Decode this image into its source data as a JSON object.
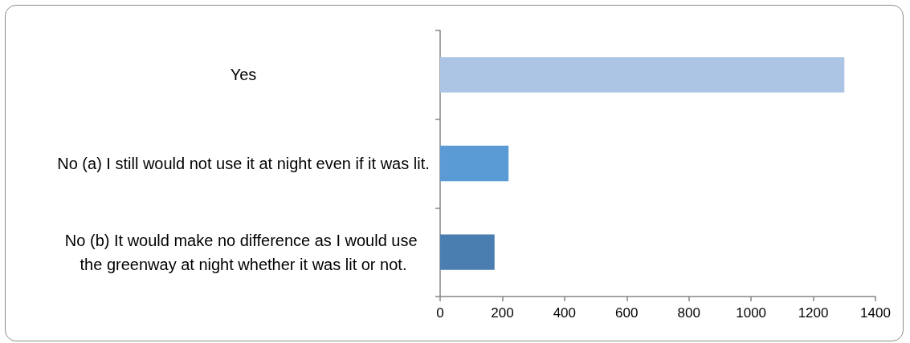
{
  "chart_data": {
    "type": "bar",
    "orientation": "horizontal",
    "categories": [
      "Yes",
      "No (a) I still would not use it at night even if it was lit.",
      "No (b) It would make no difference as I would use the greenway at night whether it was lit or not."
    ],
    "values": [
      1300,
      220,
      175
    ],
    "colors": [
      "#adc5e4",
      "#5b9bd5",
      "#4a7eb0"
    ],
    "xlim": [
      0,
      1400
    ],
    "xticks": [
      0,
      200,
      400,
      600,
      800,
      1000,
      1200,
      1400
    ],
    "grid": false
  }
}
